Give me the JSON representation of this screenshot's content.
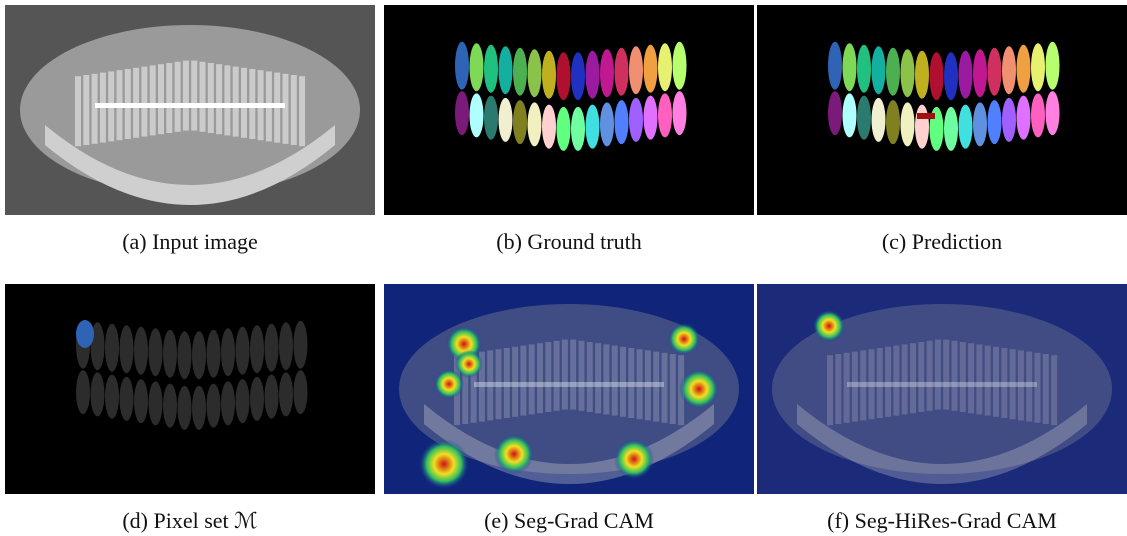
{
  "figure": {
    "panels": [
      {
        "caption": "(a) Input image"
      },
      {
        "caption": "(b) Ground truth"
      },
      {
        "caption": "(c) Prediction"
      },
      {
        "caption": "(d) Pixel set ℳ"
      },
      {
        "caption": "(e) Seg-Grad CAM"
      },
      {
        "caption": "(f) Seg-HiRes-Grad CAM"
      }
    ]
  }
}
